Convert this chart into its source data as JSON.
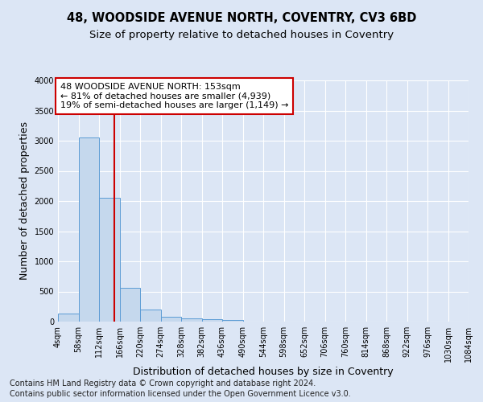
{
  "title_line1": "48, WOODSIDE AVENUE NORTH, COVENTRY, CV3 6BD",
  "title_line2": "Size of property relative to detached houses in Coventry",
  "xlabel": "Distribution of detached houses by size in Coventry",
  "ylabel": "Number of detached properties",
  "bar_color": "#c5d8ed",
  "bar_edge_color": "#5b9bd5",
  "vline_color": "#cc0000",
  "vline_x": 153,
  "bin_edges": [
    4,
    58,
    112,
    166,
    220,
    274,
    328,
    382,
    436,
    490,
    544,
    598,
    652,
    706,
    760,
    814,
    868,
    922,
    976,
    1030,
    1084
  ],
  "bar_heights": [
    130,
    3060,
    2060,
    560,
    195,
    80,
    55,
    40,
    30,
    0,
    0,
    0,
    0,
    0,
    0,
    0,
    0,
    0,
    0,
    0
  ],
  "ylim": [
    0,
    4000
  ],
  "yticks": [
    0,
    500,
    1000,
    1500,
    2000,
    2500,
    3000,
    3500,
    4000
  ],
  "annotation_title": "48 WOODSIDE AVENUE NORTH: 153sqm",
  "annotation_line2": "← 81% of detached houses are smaller (4,939)",
  "annotation_line3": "19% of semi-detached houses are larger (1,149) →",
  "annotation_box_color": "#ffffff",
  "annotation_box_edge": "#cc0000",
  "footer_line1": "Contains HM Land Registry data © Crown copyright and database right 2024.",
  "footer_line2": "Contains public sector information licensed under the Open Government Licence v3.0.",
  "background_color": "#dce6f5",
  "plot_bg_color": "#dce6f5",
  "grid_color": "#ffffff",
  "title_fontsize": 10.5,
  "subtitle_fontsize": 9.5,
  "axis_label_fontsize": 9,
  "tick_fontsize": 7,
  "annotation_fontsize": 8,
  "footer_fontsize": 7
}
